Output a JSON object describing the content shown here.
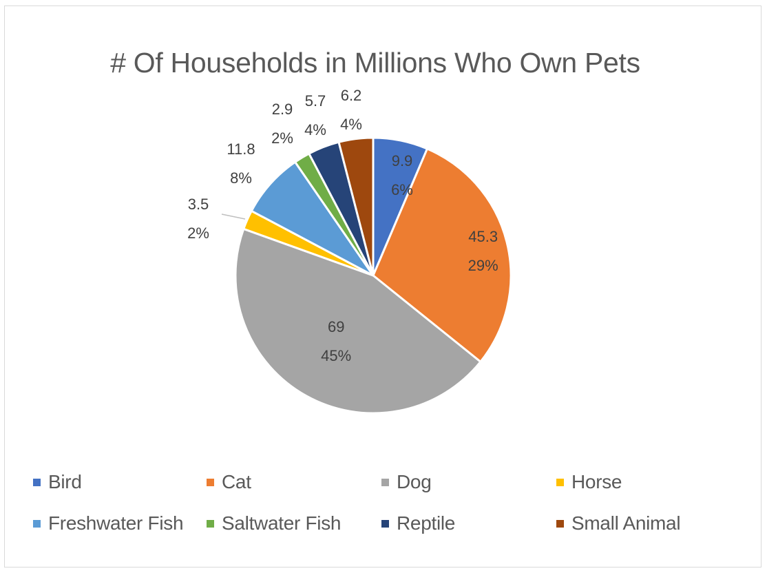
{
  "chart_data": {
    "type": "pie",
    "title": "# Of Households in Millions Who Own Pets",
    "slices": [
      {
        "name": "Bird",
        "value": 9.9,
        "percent_label": "6%",
        "color": "#4472C4"
      },
      {
        "name": "Cat",
        "value": 45.3,
        "percent_label": "29%",
        "color": "#ED7D31"
      },
      {
        "name": "Dog",
        "value": 69,
        "percent_label": "45%",
        "color": "#A5A5A5"
      },
      {
        "name": "Horse",
        "value": 3.5,
        "percent_label": "2%",
        "color": "#FFC000"
      },
      {
        "name": "Freshwater Fish",
        "value": 11.8,
        "percent_label": "8%",
        "color": "#5B9BD5"
      },
      {
        "name": "Saltwater Fish",
        "value": 2.9,
        "percent_label": "2%",
        "color": "#70AD47"
      },
      {
        "name": "Reptile",
        "value": 5.7,
        "percent_label": "4%",
        "color": "#264478"
      },
      {
        "name": "Small Animal",
        "value": 6.2,
        "percent_label": "4%",
        "color": "#9E480E"
      }
    ],
    "legend_position": "bottom"
  }
}
